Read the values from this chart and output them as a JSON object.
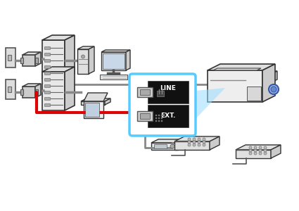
{
  "bg_color": "#ffffff",
  "red_cable": "#dd0000",
  "gray_cable": "#888888",
  "dark_gray": "#444444",
  "light_blue_border": "#55ccff",
  "line_bg": "#111111",
  "ext_bg": "#111111",
  "white": "#ffffff",
  "arrow_fill": "#666666",
  "iso_face": "#f0f0f0",
  "iso_side": "#cccccc",
  "iso_top": "#e0e0e0",
  "iso_dark": "#333333",
  "beam_blue": "#99ddff",
  "port_blue": "#4488cc"
}
